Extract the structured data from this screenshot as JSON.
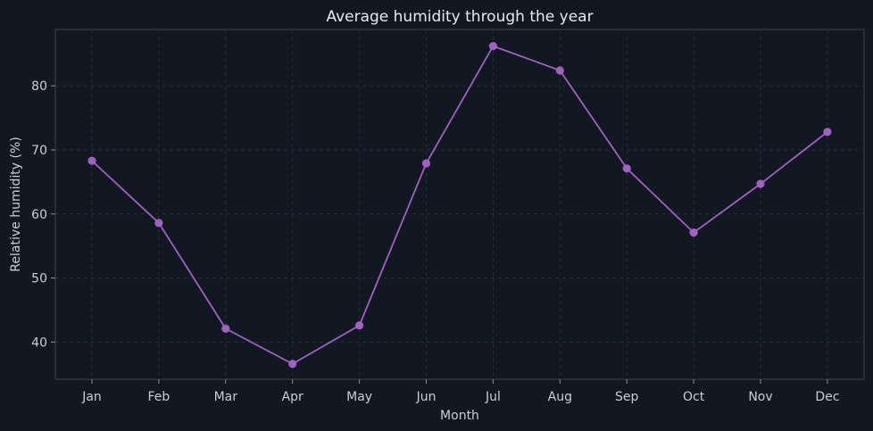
{
  "chart_data": {
    "type": "line",
    "title": "Average humidity through the year",
    "xlabel": "Month",
    "ylabel": "Relative humidity (%)",
    "categories": [
      "Jan",
      "Feb",
      "Mar",
      "Apr",
      "May",
      "Jun",
      "Jul",
      "Aug",
      "Sep",
      "Oct",
      "Nov",
      "Dec"
    ],
    "series": [
      {
        "values": [
          68.3,
          58.6,
          42.1,
          36.6,
          42.6,
          67.9,
          86.2,
          82.4,
          67.1,
          57.1,
          64.7,
          72.8
        ],
        "color": "#a25fc4"
      }
    ],
    "ylim": [
      34.2,
      88.8
    ],
    "yticks": [
      40,
      50,
      60,
      70,
      80
    ],
    "grid": true,
    "legend": "none",
    "colors": {
      "background": "#111821",
      "grid": "#24313a",
      "text": "#c9ced6",
      "line": "#a25fc4"
    }
  }
}
